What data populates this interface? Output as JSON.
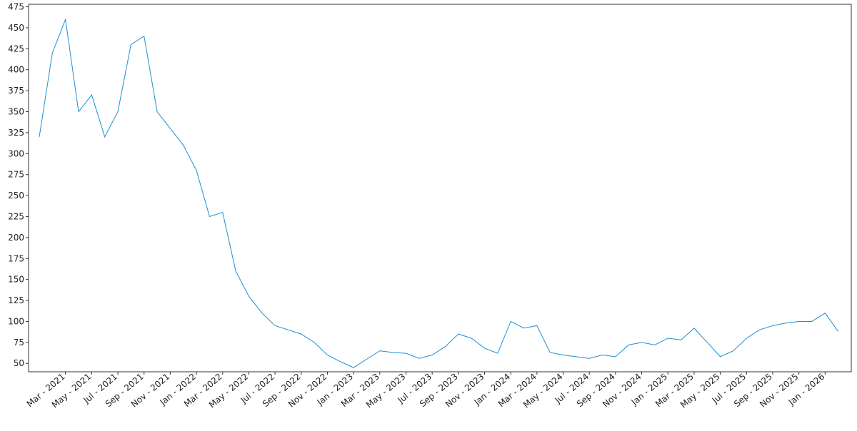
{
  "chart_data": {
    "type": "line",
    "color": "#1b8fd2",
    "xlim": [
      "2021-01",
      "2026-03"
    ],
    "ylim": [
      40,
      478
    ],
    "yticks": [
      50,
      75,
      100,
      125,
      150,
      175,
      200,
      225,
      250,
      275,
      300,
      325,
      350,
      375,
      400,
      425,
      450,
      475
    ],
    "xticks": [
      {
        "value": "2021-03",
        "label": "Mar - 2021"
      },
      {
        "value": "2021-05",
        "label": "May - 2021"
      },
      {
        "value": "2021-07",
        "label": "Jul - 2021"
      },
      {
        "value": "2021-09",
        "label": "Sep - 2021"
      },
      {
        "value": "2021-11",
        "label": "Nov - 2021"
      },
      {
        "value": "2022-01",
        "label": "Jan - 2022"
      },
      {
        "value": "2022-03",
        "label": "Mar - 2022"
      },
      {
        "value": "2022-05",
        "label": "May - 2022"
      },
      {
        "value": "2022-07",
        "label": "Jul - 2022"
      },
      {
        "value": "2022-09",
        "label": "Sep - 2022"
      },
      {
        "value": "2022-11",
        "label": "Nov - 2022"
      },
      {
        "value": "2023-01",
        "label": "Jan - 2023"
      },
      {
        "value": "2023-03",
        "label": "Mar - 2023"
      },
      {
        "value": "2023-05",
        "label": "May - 2023"
      },
      {
        "value": "2023-07",
        "label": "Jul - 2023"
      },
      {
        "value": "2023-09",
        "label": "Sep - 2023"
      },
      {
        "value": "2023-11",
        "label": "Nov - 2023"
      },
      {
        "value": "2024-01",
        "label": "Jan - 2024"
      },
      {
        "value": "2024-03",
        "label": "Mar - 2024"
      },
      {
        "value": "2024-05",
        "label": "May - 2024"
      },
      {
        "value": "2024-07",
        "label": "Jul - 2024"
      },
      {
        "value": "2024-09",
        "label": "Sep - 2024"
      },
      {
        "value": "2024-11",
        "label": "Nov - 2024"
      },
      {
        "value": "2025-01",
        "label": "Jan - 2025"
      },
      {
        "value": "2025-03",
        "label": "Mar - 2025"
      },
      {
        "value": "2025-05",
        "label": "May - 2025"
      },
      {
        "value": "2025-07",
        "label": "Jul - 2025"
      },
      {
        "value": "2025-09",
        "label": "Sep - 2025"
      },
      {
        "value": "2025-11",
        "label": "Nov - 2025"
      },
      {
        "value": "2026-01",
        "label": "Jan - 2026"
      }
    ],
    "x": [
      "2021-01",
      "2021-02",
      "2021-03",
      "2021-04",
      "2021-05",
      "2021-06",
      "2021-07",
      "2021-08",
      "2021-09",
      "2021-10",
      "2021-11",
      "2021-12",
      "2022-01",
      "2022-02",
      "2022-03",
      "2022-04",
      "2022-05",
      "2022-06",
      "2022-07",
      "2022-08",
      "2022-09",
      "2022-10",
      "2022-11",
      "2022-12",
      "2023-01",
      "2023-02",
      "2023-03",
      "2023-04",
      "2023-05",
      "2023-06",
      "2023-07",
      "2023-08",
      "2023-09",
      "2023-10",
      "2023-11",
      "2023-12",
      "2024-01",
      "2024-02",
      "2024-03",
      "2024-04",
      "2024-05",
      "2024-06",
      "2024-07",
      "2024-08",
      "2024-09",
      "2024-10",
      "2024-11",
      "2024-12",
      "2025-01",
      "2025-02",
      "2025-03",
      "2025-04",
      "2025-05",
      "2025-06",
      "2025-07",
      "2025-08",
      "2025-09",
      "2025-10",
      "2025-11",
      "2025-12",
      "2026-01",
      "2026-02"
    ],
    "values": [
      320,
      420,
      460,
      350,
      370,
      320,
      350,
      430,
      440,
      350,
      330,
      310,
      280,
      225,
      230,
      160,
      130,
      110,
      95,
      90,
      85,
      75,
      60,
      52,
      45,
      55,
      65,
      63,
      62,
      56,
      60,
      70,
      85,
      80,
      68,
      62,
      100,
      92,
      95,
      63,
      60,
      58,
      56,
      60,
      58,
      72,
      75,
      72,
      80,
      78,
      92,
      75,
      58,
      65,
      80,
      90,
      95,
      98,
      100,
      100,
      110,
      88
    ]
  }
}
